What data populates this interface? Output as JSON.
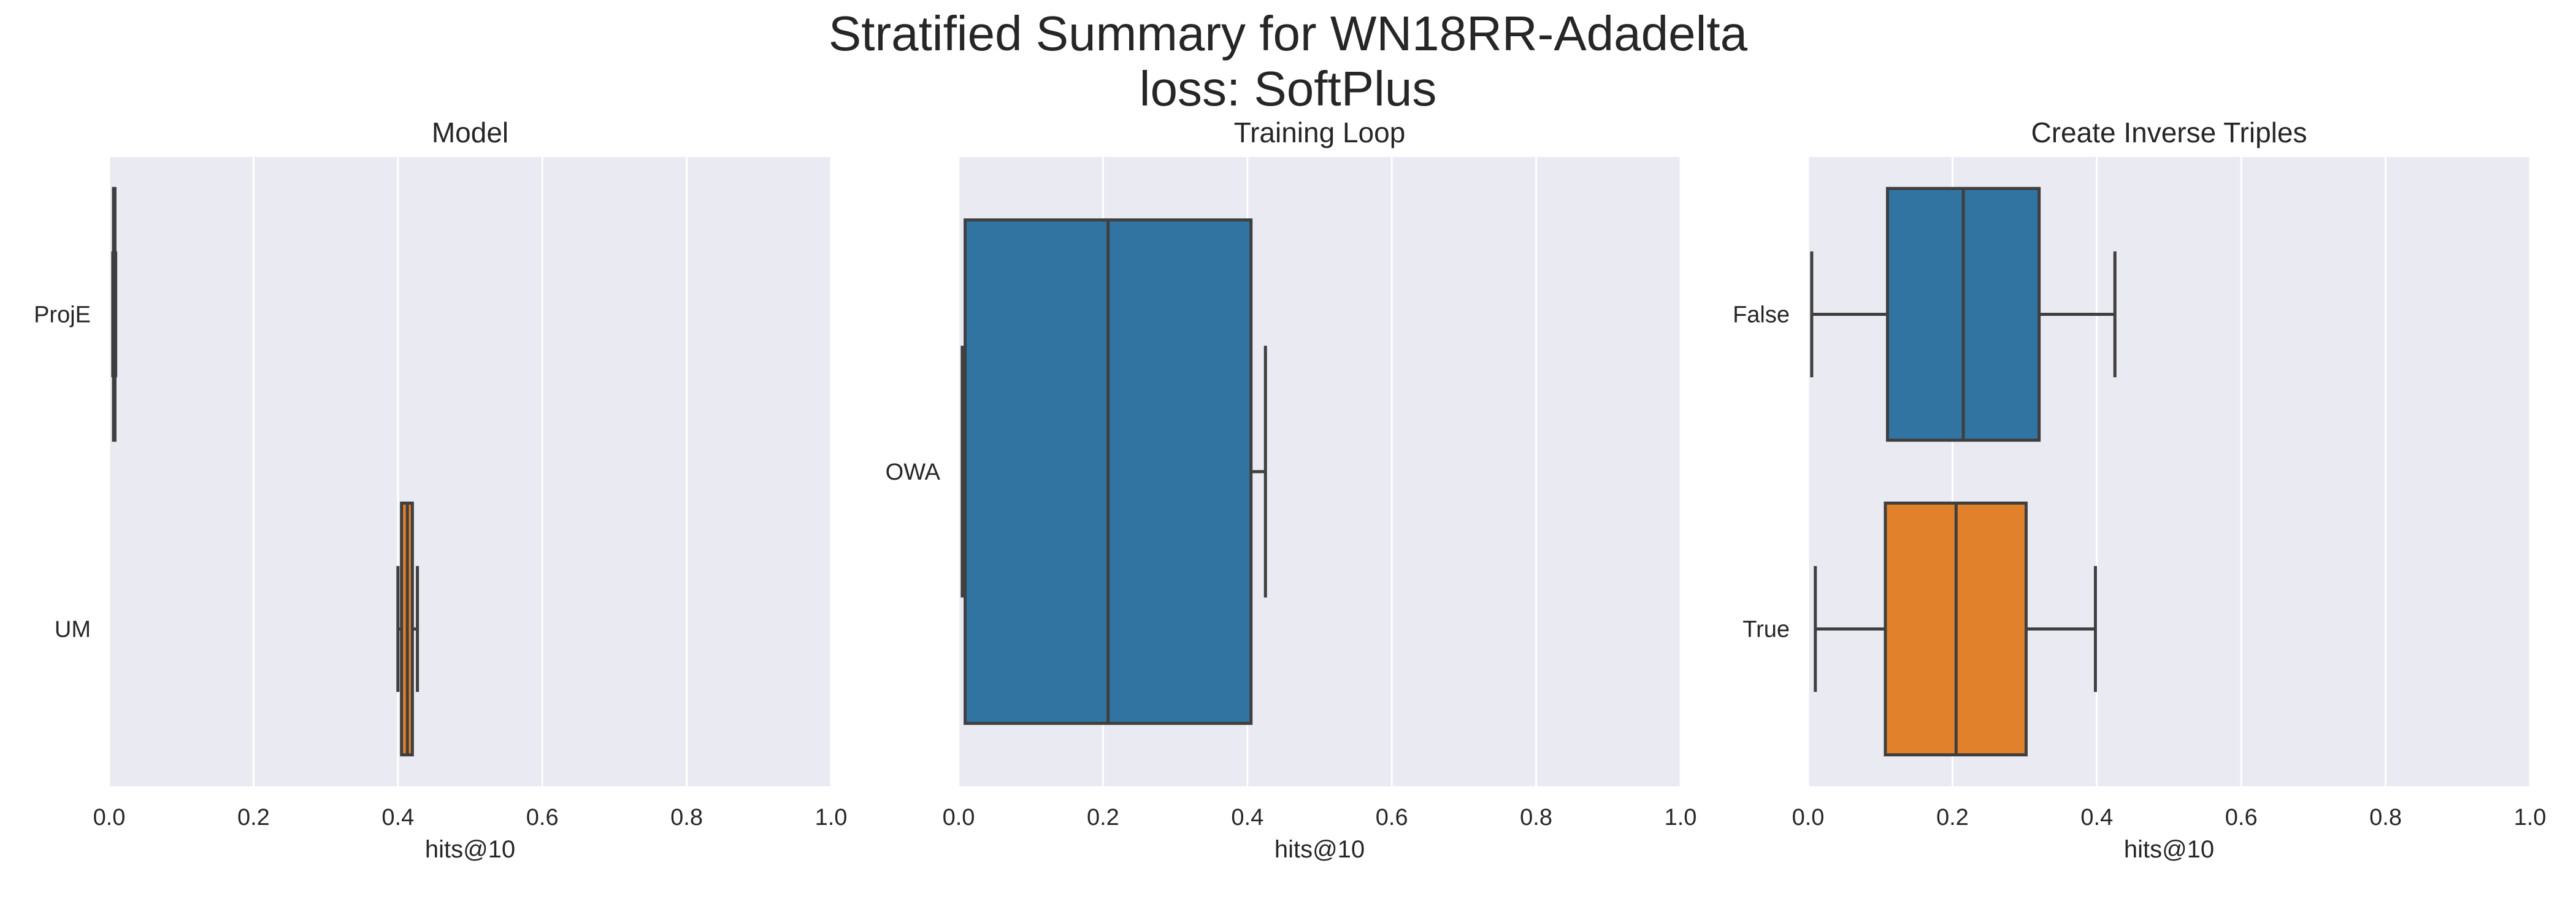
{
  "figure": {
    "title_line1": "Stratified Summary for WN18RR-Adadelta",
    "title_line2": "loss: SoftPlus"
  },
  "chart_data": [
    {
      "type": "box",
      "orientation": "horizontal",
      "title": "Model",
      "xlabel": "hits@10",
      "xlim": [
        0,
        1
      ],
      "xticks": [
        "0.0",
        "0.2",
        "0.4",
        "0.6",
        "0.8",
        "1.0"
      ],
      "grid": true,
      "categories": [
        "ProjE",
        "UM"
      ],
      "boxes": [
        {
          "label": "ProjE",
          "whisker_low": 0.005,
          "q1": 0.006,
          "median": 0.007,
          "q3": 0.008,
          "whisker_high": 0.009,
          "color": "#3274a1"
        },
        {
          "label": "UM",
          "whisker_low": 0.4,
          "q1": 0.405,
          "median": 0.413,
          "q3": 0.42,
          "whisker_high": 0.427,
          "color": "#e1812c"
        }
      ]
    },
    {
      "type": "box",
      "orientation": "horizontal",
      "title": "Training Loop",
      "xlabel": "hits@10",
      "xlim": [
        0,
        1
      ],
      "xticks": [
        "0.0",
        "0.2",
        "0.4",
        "0.6",
        "0.8",
        "1.0"
      ],
      "grid": true,
      "categories": [
        "OWA"
      ],
      "boxes": [
        {
          "label": "OWA",
          "whisker_low": 0.005,
          "q1": 0.009,
          "median": 0.207,
          "q3": 0.405,
          "whisker_high": 0.425,
          "color": "#3274a1"
        }
      ]
    },
    {
      "type": "box",
      "orientation": "horizontal",
      "title": "Create Inverse Triples",
      "xlabel": "hits@10",
      "xlim": [
        0,
        1
      ],
      "xticks": [
        "0.0",
        "0.2",
        "0.4",
        "0.6",
        "0.8",
        "1.0"
      ],
      "grid": true,
      "categories": [
        "False",
        "True"
      ],
      "boxes": [
        {
          "label": "False",
          "whisker_low": 0.005,
          "q1": 0.11,
          "median": 0.215,
          "q3": 0.32,
          "whisker_high": 0.425,
          "color": "#3274a1"
        },
        {
          "label": "True",
          "whisker_low": 0.01,
          "q1": 0.107,
          "median": 0.205,
          "q3": 0.302,
          "whisker_high": 0.398,
          "color": "#e1812c"
        }
      ]
    }
  ]
}
